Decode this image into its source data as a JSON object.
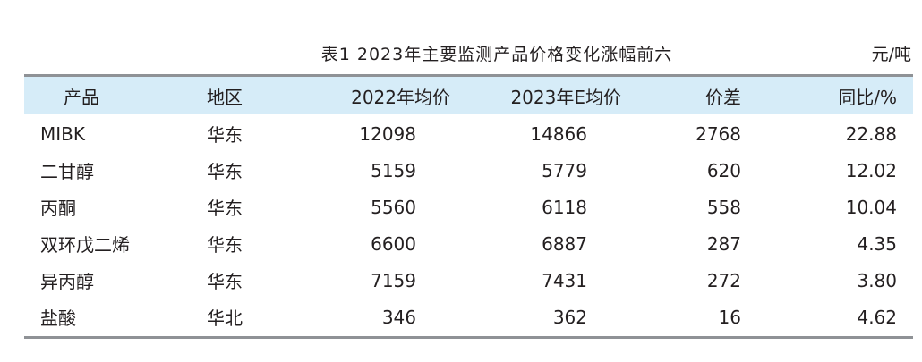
{
  "table": {
    "title": "表1  2023年主要监测产品价格变化涨幅前六",
    "unit": "元/吨",
    "headers": {
      "product": "产品",
      "region": "地区",
      "v2022": "2022年均价",
      "v2023": "2023年E均价",
      "diff": "价差",
      "yoy": "同比/%"
    },
    "rows": [
      {
        "product": "MIBK",
        "region": "华东",
        "v2022": "12098",
        "v2023": "14866",
        "diff": "2768",
        "yoy": "22.88"
      },
      {
        "product": "二甘醇",
        "region": "华东",
        "v2022": "5159",
        "v2023": "5779",
        "diff": "620",
        "yoy": "12.02"
      },
      {
        "product": "丙酮",
        "region": "华东",
        "v2022": "5560",
        "v2023": "6118",
        "diff": "558",
        "yoy": "10.04"
      },
      {
        "product": "双环戊二烯",
        "region": "华东",
        "v2022": "6600",
        "v2023": "6887",
        "diff": "287",
        "yoy": "4.35"
      },
      {
        "product": "异丙醇",
        "region": "华东",
        "v2022": "7159",
        "v2023": "7431",
        "diff": "272",
        "yoy": "3.80"
      },
      {
        "product": "盐酸",
        "region": "华北",
        "v2022": "346",
        "v2023": "362",
        "diff": "16",
        "yoy": "4.62"
      }
    ]
  },
  "colors": {
    "header_bg": "#d6ecf8",
    "rule": "#8f9296",
    "text": "#231f20"
  }
}
